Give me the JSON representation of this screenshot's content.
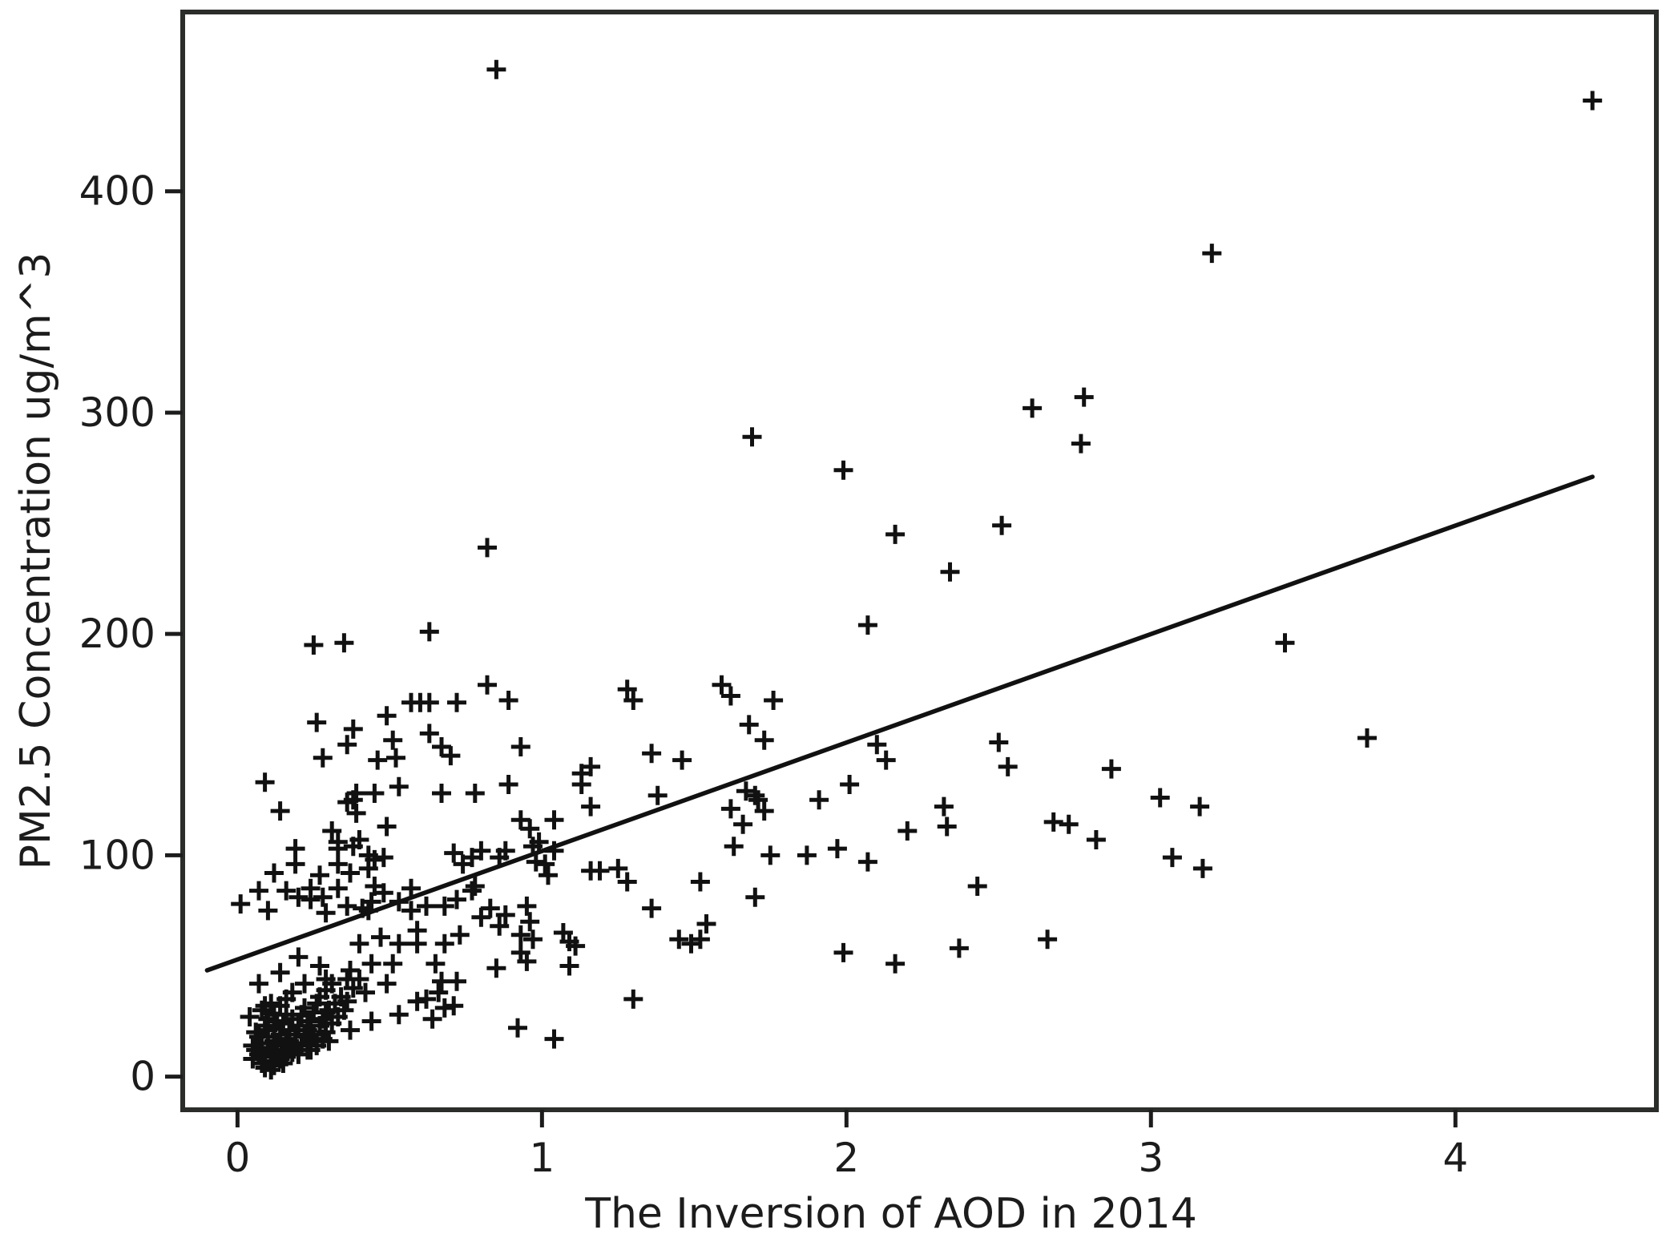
{
  "figure": {
    "background": "#ffffff",
    "axis_color": "#1c1c1c",
    "marker_color": "#111111",
    "line_color": "#111111"
  },
  "chart_data": {
    "type": "scatter",
    "title": "",
    "xlabel": "The Inversion of AOD in 2014",
    "ylabel": "PM2.5 Concentration ug/m^3",
    "xlim": [
      -0.18,
      4.66
    ],
    "ylim": [
      -15,
      481
    ],
    "xticks": [
      0,
      1,
      2,
      3,
      4
    ],
    "yticks": [
      0,
      100,
      200,
      300,
      400
    ],
    "grid": false,
    "legend": "none",
    "marker": {
      "shape": "plus",
      "color": "#111111",
      "size": 24,
      "stroke_width": 5
    },
    "trendline": {
      "x1": -0.1,
      "y1": 48,
      "x2": 4.45,
      "y2": 271,
      "color": "#111111",
      "width": 5.5
    },
    "points": [
      [
        0.85,
        455
      ],
      [
        4.45,
        441
      ],
      [
        3.2,
        372
      ],
      [
        2.78,
        307
      ],
      [
        2.61,
        302
      ],
      [
        1.69,
        289
      ],
      [
        2.77,
        286
      ],
      [
        1.99,
        274
      ],
      [
        2.51,
        249
      ],
      [
        2.16,
        245
      ],
      [
        0.82,
        239
      ],
      [
        2.34,
        228
      ],
      [
        2.07,
        204
      ],
      [
        3.44,
        196
      ],
      [
        0.63,
        201
      ],
      [
        0.25,
        195
      ],
      [
        0.35,
        196
      ],
      [
        0.82,
        177
      ],
      [
        0.26,
        160
      ],
      [
        0.28,
        144
      ],
      [
        0.36,
        150
      ],
      [
        0.46,
        143
      ],
      [
        0.51,
        152
      ],
      [
        0.49,
        163
      ],
      [
        0.38,
        157
      ],
      [
        0.52,
        144
      ],
      [
        0.57,
        169
      ],
      [
        0.6,
        169
      ],
      [
        0.63,
        169
      ],
      [
        0.72,
        169
      ],
      [
        0.89,
        170
      ],
      [
        0.63,
        155
      ],
      [
        0.67,
        149
      ],
      [
        0.7,
        145
      ],
      [
        0.93,
        149
      ],
      [
        1.28,
        175
      ],
      [
        1.3,
        170
      ],
      [
        1.36,
        146
      ],
      [
        1.46,
        143
      ],
      [
        1.59,
        177
      ],
      [
        1.62,
        172
      ],
      [
        1.68,
        159
      ],
      [
        1.73,
        152
      ],
      [
        1.76,
        170
      ],
      [
        2.1,
        150
      ],
      [
        2.13,
        143
      ],
      [
        2.5,
        151
      ],
      [
        2.53,
        140
      ],
      [
        3.71,
        153
      ],
      [
        0.09,
        133
      ],
      [
        0.14,
        120
      ],
      [
        0.19,
        103
      ],
      [
        0.31,
        111
      ],
      [
        0.33,
        103
      ],
      [
        0.33,
        106
      ],
      [
        0.36,
        124
      ],
      [
        0.38,
        125
      ],
      [
        0.38,
        104
      ],
      [
        0.39,
        128
      ],
      [
        0.39,
        119
      ],
      [
        0.4,
        107
      ],
      [
        0.43,
        100
      ],
      [
        0.45,
        128
      ],
      [
        0.49,
        113
      ],
      [
        0.53,
        131
      ],
      [
        0.67,
        128
      ],
      [
        0.78,
        128
      ],
      [
        0.89,
        132
      ],
      [
        0.93,
        116
      ],
      [
        0.96,
        112
      ],
      [
        0.97,
        104
      ],
      [
        0.99,
        106
      ],
      [
        1.04,
        102
      ],
      [
        1.04,
        116
      ],
      [
        1.13,
        137
      ],
      [
        1.13,
        132
      ],
      [
        1.16,
        140
      ],
      [
        1.16,
        122
      ],
      [
        1.38,
        127
      ],
      [
        1.62,
        121
      ],
      [
        1.63,
        104
      ],
      [
        1.66,
        114
      ],
      [
        1.67,
        129
      ],
      [
        1.7,
        127
      ],
      [
        1.71,
        125
      ],
      [
        1.73,
        120
      ],
      [
        1.91,
        125
      ],
      [
        1.97,
        103
      ],
      [
        2.01,
        132
      ],
      [
        2.2,
        111
      ],
      [
        2.32,
        122
      ],
      [
        2.33,
        113
      ],
      [
        2.68,
        115
      ],
      [
        2.73,
        114
      ],
      [
        2.82,
        107
      ],
      [
        2.87,
        139
      ],
      [
        3.03,
        126
      ],
      [
        3.16,
        122
      ],
      [
        0.12,
        92
      ],
      [
        0.19,
        96
      ],
      [
        0.27,
        91
      ],
      [
        0.33,
        96
      ],
      [
        0.37,
        92
      ],
      [
        0.43,
        94
      ],
      [
        0.45,
        86
      ],
      [
        0.45,
        98
      ],
      [
        0.48,
        99
      ],
      [
        0.71,
        101
      ],
      [
        0.74,
        96
      ],
      [
        0.77,
        99
      ],
      [
        0.8,
        102
      ],
      [
        0.86,
        99
      ],
      [
        0.88,
        102
      ],
      [
        0.98,
        97
      ],
      [
        1.01,
        96
      ],
      [
        1.02,
        91
      ],
      [
        1.16,
        93
      ],
      [
        1.19,
        93
      ],
      [
        1.25,
        94
      ],
      [
        1.28,
        88
      ],
      [
        1.52,
        88
      ],
      [
        1.75,
        100
      ],
      [
        1.87,
        100
      ],
      [
        2.07,
        97
      ],
      [
        2.43,
        86
      ],
      [
        3.07,
        99
      ],
      [
        3.17,
        94
      ],
      [
        0.01,
        78
      ],
      [
        0.07,
        84
      ],
      [
        0.1,
        75
      ],
      [
        0.16,
        84
      ],
      [
        0.2,
        81
      ],
      [
        0.24,
        85
      ],
      [
        0.24,
        80
      ],
      [
        0.28,
        81
      ],
      [
        0.29,
        74
      ],
      [
        0.33,
        85
      ],
      [
        0.36,
        77
      ],
      [
        0.4,
        60
      ],
      [
        0.41,
        76
      ],
      [
        0.43,
        75
      ],
      [
        0.44,
        79
      ],
      [
        0.47,
        63
      ],
      [
        0.48,
        83
      ],
      [
        0.53,
        60
      ],
      [
        0.53,
        79
      ],
      [
        0.57,
        85
      ],
      [
        0.57,
        75
      ],
      [
        0.59,
        66
      ],
      [
        0.62,
        77
      ],
      [
        0.68,
        60
      ],
      [
        0.68,
        77
      ],
      [
        0.72,
        80
      ],
      [
        0.73,
        64
      ],
      [
        0.77,
        84
      ],
      [
        0.78,
        86
      ],
      [
        0.8,
        72
      ],
      [
        0.83,
        76
      ],
      [
        0.86,
        68
      ],
      [
        0.88,
        73
      ],
      [
        0.93,
        64
      ],
      [
        0.95,
        77
      ],
      [
        0.96,
        70
      ],
      [
        1.07,
        65
      ],
      [
        1.09,
        61
      ],
      [
        1.11,
        59
      ],
      [
        1.36,
        76
      ],
      [
        1.45,
        62
      ],
      [
        1.49,
        60
      ],
      [
        1.52,
        62
      ],
      [
        1.54,
        69
      ],
      [
        1.7,
        81
      ],
      [
        2.66,
        62
      ],
      [
        0.07,
        42
      ],
      [
        0.14,
        47
      ],
      [
        0.2,
        54
      ],
      [
        0.22,
        42
      ],
      [
        0.27,
        50
      ],
      [
        0.29,
        44
      ],
      [
        0.37,
        48
      ],
      [
        0.42,
        38
      ],
      [
        0.44,
        51
      ],
      [
        0.49,
        42
      ],
      [
        0.51,
        51
      ],
      [
        0.59,
        60
      ],
      [
        0.65,
        51
      ],
      [
        0.67,
        43
      ],
      [
        0.72,
        43
      ],
      [
        0.85,
        49
      ],
      [
        0.93,
        56
      ],
      [
        0.95,
        52
      ],
      [
        0.97,
        62
      ],
      [
        1.09,
        50
      ],
      [
        1.99,
        56
      ],
      [
        2.16,
        51
      ],
      [
        2.37,
        58
      ],
      [
        0.04,
        27
      ],
      [
        0.09,
        32
      ],
      [
        0.16,
        28
      ],
      [
        0.23,
        25
      ],
      [
        0.29,
        29
      ],
      [
        0.36,
        34
      ],
      [
        0.1,
        21
      ],
      [
        0.17,
        16
      ],
      [
        0.24,
        12
      ],
      [
        0.3,
        16
      ],
      [
        0.37,
        21
      ],
      [
        0.44,
        25
      ],
      [
        0.53,
        28
      ],
      [
        0.59,
        34
      ],
      [
        0.62,
        35
      ],
      [
        0.64,
        26
      ],
      [
        0.66,
        38
      ],
      [
        0.68,
        31
      ],
      [
        0.71,
        32
      ],
      [
        0.92,
        22
      ],
      [
        1.04,
        17
      ],
      [
        1.3,
        35
      ],
      [
        0.05,
        8
      ],
      [
        0.05,
        14
      ],
      [
        0.06,
        12
      ],
      [
        0.06,
        20
      ],
      [
        0.07,
        10
      ],
      [
        0.07,
        18
      ],
      [
        0.08,
        6
      ],
      [
        0.08,
        15
      ],
      [
        0.08,
        30
      ],
      [
        0.09,
        9
      ],
      [
        0.09,
        23
      ],
      [
        0.09,
        4
      ],
      [
        0.1,
        13
      ],
      [
        0.1,
        18
      ],
      [
        0.1,
        26
      ],
      [
        0.11,
        7
      ],
      [
        0.11,
        11
      ],
      [
        0.11,
        33
      ],
      [
        0.11,
        3
      ],
      [
        0.12,
        16
      ],
      [
        0.12,
        22
      ],
      [
        0.12,
        28
      ],
      [
        0.12,
        5
      ],
      [
        0.13,
        10
      ],
      [
        0.13,
        14
      ],
      [
        0.13,
        25
      ],
      [
        0.14,
        19
      ],
      [
        0.14,
        8
      ],
      [
        0.14,
        32
      ],
      [
        0.15,
        12
      ],
      [
        0.15,
        24
      ],
      [
        0.15,
        6
      ],
      [
        0.16,
        17
      ],
      [
        0.16,
        9
      ],
      [
        0.16,
        35
      ],
      [
        0.17,
        21
      ],
      [
        0.17,
        13
      ],
      [
        0.18,
        26
      ],
      [
        0.18,
        11
      ],
      [
        0.18,
        38
      ],
      [
        0.19,
        15
      ],
      [
        0.19,
        19
      ],
      [
        0.2,
        23
      ],
      [
        0.2,
        10
      ],
      [
        0.21,
        28
      ],
      [
        0.21,
        14
      ],
      [
        0.22,
        18
      ],
      [
        0.22,
        31
      ],
      [
        0.23,
        21
      ],
      [
        0.23,
        12
      ],
      [
        0.24,
        25
      ],
      [
        0.24,
        16
      ],
      [
        0.25,
        29
      ],
      [
        0.25,
        19
      ],
      [
        0.26,
        33
      ],
      [
        0.26,
        14
      ],
      [
        0.27,
        23
      ],
      [
        0.27,
        36
      ],
      [
        0.28,
        26
      ],
      [
        0.28,
        17
      ],
      [
        0.29,
        39
      ],
      [
        0.29,
        20
      ],
      [
        0.3,
        30
      ],
      [
        0.31,
        24
      ],
      [
        0.31,
        42
      ],
      [
        0.32,
        33
      ],
      [
        0.33,
        27
      ],
      [
        0.34,
        36
      ],
      [
        0.35,
        30
      ],
      [
        0.36,
        44
      ],
      [
        0.38,
        40
      ],
      [
        0.4,
        44
      ]
    ]
  }
}
